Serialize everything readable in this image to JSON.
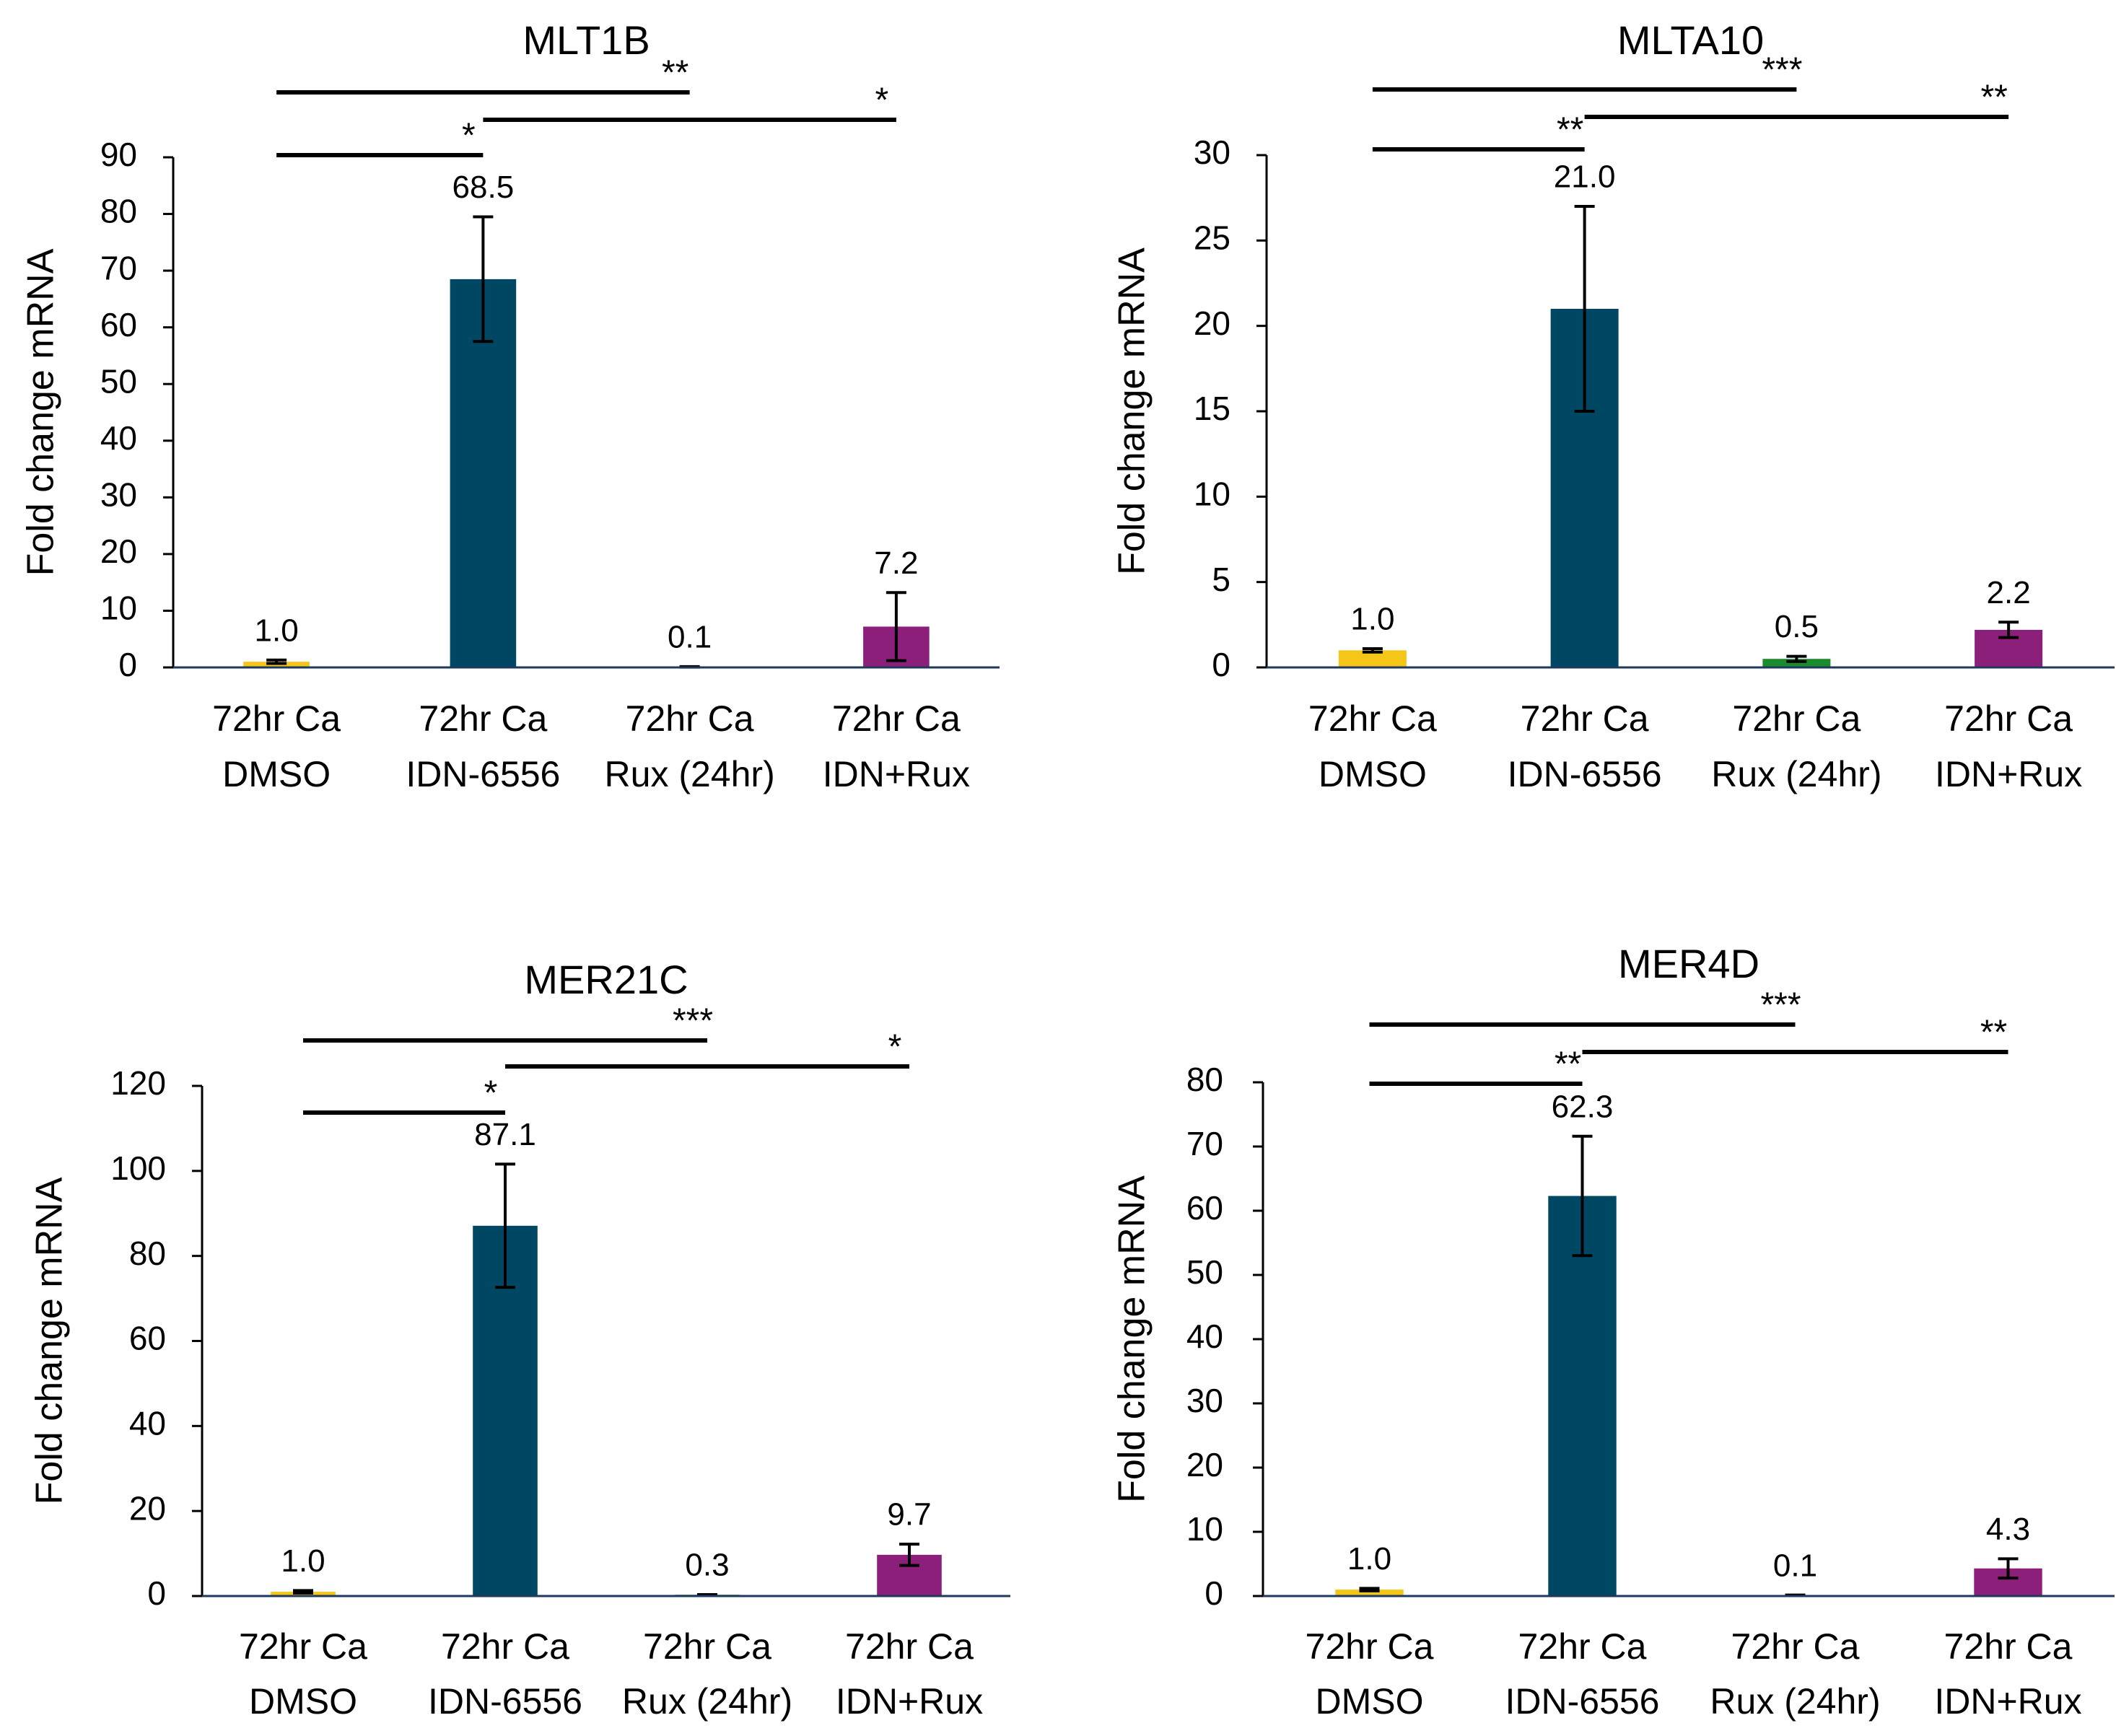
{
  "colors": {
    "dmso": "#F5C518",
    "idn": "#004763",
    "rux": "#1B8C2E",
    "combo": "#8B1F7A",
    "axis": "#000000",
    "error": "#000000"
  },
  "chart_data": [
    {
      "type": "bar",
      "title": "MLT1B",
      "ylabel": "Fold change mRNA",
      "xlabel": "",
      "ylim": [
        0,
        90
      ],
      "yticks": [
        0,
        10,
        20,
        30,
        40,
        50,
        60,
        70,
        80,
        90
      ],
      "categories": [
        [
          "72hr Ca",
          "DMSO"
        ],
        [
          "72hr Ca",
          "IDN-6556"
        ],
        [
          "72hr Ca",
          "Rux (24hr)"
        ],
        [
          "72hr Ca",
          "IDN+Rux"
        ]
      ],
      "values": [
        1.0,
        68.5,
        0.1,
        7.2
      ],
      "value_labels": [
        "1.0",
        "68.5",
        "0.1",
        "7.2"
      ],
      "errors": [
        0.3,
        11,
        0.05,
        6
      ],
      "bar_colors": [
        "dmso",
        "idn",
        "rux",
        "combo"
      ],
      "significance": [
        {
          "from": 0,
          "to": 1,
          "label": "*",
          "level": 1
        },
        {
          "from": 0,
          "to": 2,
          "label": "**",
          "level": 3
        },
        {
          "from": 1,
          "to": 3,
          "label": "*",
          "level": 2
        }
      ]
    },
    {
      "type": "bar",
      "title": "MLTA10",
      "ylabel": "Fold change mRNA",
      "xlabel": "",
      "ylim": [
        0,
        30
      ],
      "yticks": [
        0,
        5,
        10,
        15,
        20,
        25,
        30
      ],
      "categories": [
        [
          "72hr Ca",
          "DMSO"
        ],
        [
          "72hr Ca",
          "IDN-6556"
        ],
        [
          "72hr Ca",
          "Rux (24hr)"
        ],
        [
          "72hr Ca",
          "IDN+Rux"
        ]
      ],
      "values": [
        1.0,
        21.0,
        0.5,
        2.2
      ],
      "value_labels": [
        "1.0",
        "21.0",
        "0.5",
        "2.2"
      ],
      "errors": [
        0.1,
        6,
        0.15,
        0.45
      ],
      "bar_colors": [
        "dmso",
        "idn",
        "rux",
        "combo"
      ],
      "significance": [
        {
          "from": 0,
          "to": 1,
          "label": "**",
          "level": 1
        },
        {
          "from": 0,
          "to": 2,
          "label": "***",
          "level": 3
        },
        {
          "from": 1,
          "to": 3,
          "label": "**",
          "level": 2
        }
      ]
    },
    {
      "type": "bar",
      "title": "MER21C",
      "ylabel": "Fold change mRNA",
      "xlabel": "",
      "ylim": [
        0,
        120
      ],
      "yticks": [
        0,
        20,
        40,
        60,
        80,
        100,
        120
      ],
      "categories": [
        [
          "72hr Ca",
          "DMSO"
        ],
        [
          "72hr Ca",
          "IDN-6556"
        ],
        [
          "72hr Ca",
          "Rux (24hr)"
        ],
        [
          "72hr Ca",
          "IDN+Rux"
        ]
      ],
      "values": [
        1.0,
        87.1,
        0.3,
        9.7
      ],
      "value_labels": [
        "1.0",
        "87.1",
        "0.3",
        "9.7"
      ],
      "errors": [
        0.3,
        14.5,
        0.05,
        2.5
      ],
      "bar_colors": [
        "dmso",
        "idn",
        "rux",
        "combo"
      ],
      "significance": [
        {
          "from": 0,
          "to": 1,
          "label": "*",
          "level": 1
        },
        {
          "from": 0,
          "to": 2,
          "label": "***",
          "level": 3
        },
        {
          "from": 1,
          "to": 3,
          "label": "*",
          "level": 2
        }
      ]
    },
    {
      "type": "bar",
      "title": "MER4D",
      "ylabel": "Fold change mRNA",
      "xlabel": "",
      "ylim": [
        0,
        80
      ],
      "yticks": [
        0,
        10,
        20,
        30,
        40,
        50,
        60,
        70,
        80
      ],
      "categories": [
        [
          "72hr Ca",
          "DMSO"
        ],
        [
          "72hr Ca",
          "IDN-6556"
        ],
        [
          "72hr Ca",
          "Rux (24hr)"
        ],
        [
          "72hr Ca",
          "IDN+Rux"
        ]
      ],
      "values": [
        1.0,
        62.3,
        0.1,
        4.3
      ],
      "value_labels": [
        "1.0",
        "62.3",
        "0.1",
        "4.3"
      ],
      "errors": [
        0.2,
        9.3,
        0.05,
        1.5
      ],
      "bar_colors": [
        "dmso",
        "idn",
        "rux",
        "combo"
      ],
      "significance": [
        {
          "from": 0,
          "to": 1,
          "label": "**",
          "level": 1
        },
        {
          "from": 0,
          "to": 2,
          "label": "***",
          "level": 3
        },
        {
          "from": 1,
          "to": 3,
          "label": "**",
          "level": 2
        }
      ]
    }
  ]
}
